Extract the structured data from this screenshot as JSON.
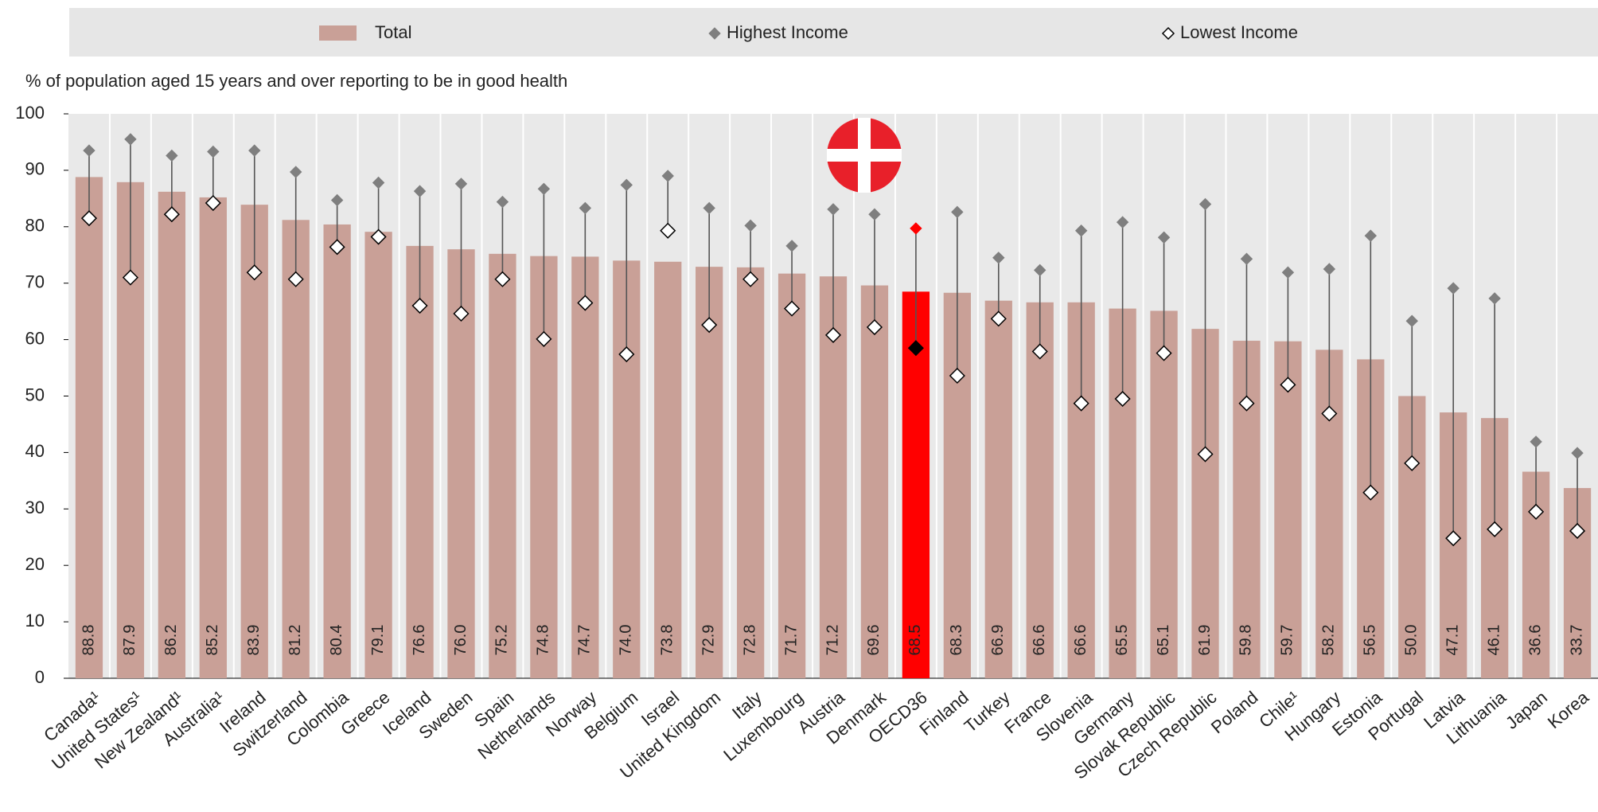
{
  "chart_data": {
    "type": "bar",
    "subtitle": "% of population aged 15 years and over reporting to be in good health",
    "categories": [
      "Canada¹",
      "United States¹",
      "New Zealand¹",
      "Australia¹",
      "Ireland",
      "Switzerland",
      "Colombia",
      "Greece",
      "Iceland",
      "Sweden",
      "Spain",
      "Netherlands",
      "Norway",
      "Belgium",
      "Israel",
      "United Kingdom",
      "Italy",
      "Luxembourg",
      "Austria",
      "Denmark",
      "OECD36",
      "Finland",
      "Turkey",
      "France",
      "Slovenia",
      "Germany",
      "Slovak Republic",
      "Czech Republic",
      "Poland",
      "Chile¹",
      "Hungary",
      "Estonia",
      "Portugal",
      "Latvia",
      "Lithuania",
      "Japan",
      "Korea"
    ],
    "series": [
      {
        "name": "Total",
        "color": "#c9a097",
        "values": [
          88.8,
          87.9,
          86.2,
          85.2,
          83.9,
          81.2,
          80.4,
          79.1,
          76.6,
          76.0,
          75.2,
          74.8,
          74.7,
          74.0,
          73.8,
          72.9,
          72.8,
          71.7,
          71.2,
          69.6,
          68.5,
          68.3,
          66.9,
          66.6,
          66.6,
          65.5,
          65.1,
          61.9,
          59.8,
          59.7,
          58.2,
          56.5,
          50.0,
          47.1,
          46.1,
          36.6,
          33.7
        ],
        "value_labels": [
          "88.8",
          "87.9",
          "86.2",
          "85.2",
          "83.9",
          "81.2",
          "80.4",
          "79.1",
          "76.6",
          "76.0",
          "75.2",
          "74.8",
          "74.7",
          "74.0",
          "73.8",
          "72.9",
          "72.8",
          "71.7",
          "71.2",
          "69.6",
          "68.5",
          "68.3",
          "66.9",
          "66.6",
          "66.6",
          "65.5",
          "65.1",
          "61.9",
          "59.8",
          "59.7",
          "58.2",
          "56.5",
          "50.0",
          "47.1",
          "46.1",
          "36.6",
          "33.7"
        ]
      },
      {
        "name": "Highest Income",
        "color": "#7f7f7f",
        "marker_fill": "#7f7f7f",
        "values": [
          93.5,
          95.5,
          92.6,
          93.3,
          93.5,
          89.7,
          84.7,
          87.8,
          86.3,
          87.6,
          84.4,
          86.7,
          83.3,
          87.4,
          89.0,
          83.3,
          80.2,
          76.6,
          83.1,
          82.2,
          79.7,
          82.6,
          74.5,
          72.3,
          79.3,
          80.8,
          78.1,
          84.0,
          74.3,
          71.9,
          72.5,
          78.4,
          63.3,
          69.1,
          67.3,
          41.9,
          39.9
        ]
      },
      {
        "name": "Lowest Income",
        "color": "#000000",
        "marker_fill": "#ffffff",
        "values": [
          81.5,
          71.0,
          82.2,
          84.2,
          71.9,
          70.7,
          76.4,
          78.2,
          66.0,
          64.6,
          70.7,
          60.1,
          66.5,
          57.4,
          79.3,
          62.6,
          70.7,
          65.5,
          60.8,
          62.2,
          58.5,
          53.6,
          63.7,
          57.9,
          48.7,
          49.5,
          57.6,
          39.7,
          48.7,
          52.0,
          46.9,
          32.9,
          38.1,
          24.8,
          26.4,
          29.5,
          26.1
        ]
      }
    ],
    "highlight": {
      "category": "OECD36",
      "color": "#ff0000",
      "high_color": "#ff0000",
      "low_color": "#000000"
    },
    "ylim": [
      0,
      100
    ],
    "yticks": [
      0,
      10,
      20,
      30,
      40,
      50,
      60,
      70,
      80,
      90,
      100
    ],
    "grid": false
  }
}
